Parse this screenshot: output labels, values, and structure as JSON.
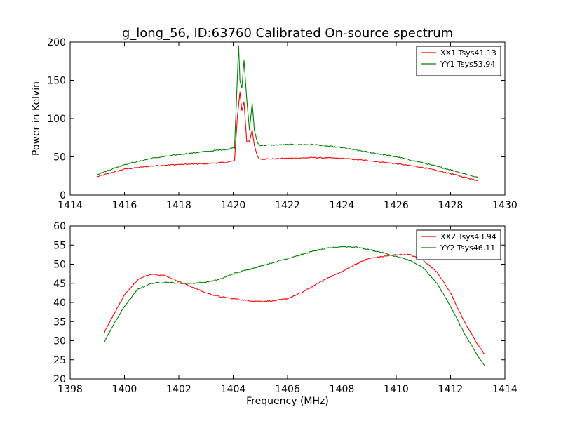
{
  "chart_data": [
    {
      "type": "line",
      "title": "g_long_56, ID:63760 Calibrated On-source spectrum",
      "xlabel": "",
      "ylabel": "Power in Kelvin",
      "xlim": [
        1414,
        1430
      ],
      "ylim": [
        0,
        200
      ],
      "xticks": [
        "1414",
        "1416",
        "1418",
        "1420",
        "1422",
        "1424",
        "1426",
        "1428",
        "1430"
      ],
      "yticks": [
        "0",
        "50",
        "100",
        "150",
        "200"
      ],
      "legend": "top-right",
      "grid": false,
      "series": [
        {
          "name": "XX1 Tsys41.13",
          "color": "#ff0000",
          "x": [
            1415.0,
            1416.0,
            1417.0,
            1418.0,
            1419.0,
            1419.8,
            1420.05,
            1420.15,
            1420.25,
            1420.32,
            1420.4,
            1420.5,
            1420.6,
            1420.7,
            1420.78,
            1420.9,
            1421.0,
            1422.0,
            1423.0,
            1424.0,
            1425.0,
            1426.0,
            1427.0,
            1428.0,
            1429.0
          ],
          "y": [
            24,
            34,
            38,
            40,
            41,
            43,
            45,
            100,
            135,
            110,
            122,
            70,
            70,
            85,
            65,
            50,
            47,
            48,
            49,
            48,
            45,
            41,
            36,
            28,
            19
          ]
        },
        {
          "name": "YY1 Tsys53.94",
          "color": "#008000",
          "x": [
            1415.0,
            1416.0,
            1417.0,
            1418.0,
            1419.0,
            1419.8,
            1420.05,
            1420.15,
            1420.2,
            1420.25,
            1420.32,
            1420.4,
            1420.5,
            1420.6,
            1420.7,
            1420.78,
            1420.9,
            1421.0,
            1422.0,
            1423.0,
            1424.0,
            1425.0,
            1426.0,
            1427.0,
            1428.0,
            1429.0
          ],
          "y": [
            27,
            40,
            48,
            53,
            57,
            60,
            62,
            150,
            196,
            150,
            140,
            176,
            125,
            85,
            120,
            85,
            68,
            65,
            66,
            66,
            62,
            56,
            50,
            42,
            33,
            23
          ]
        }
      ]
    },
    {
      "type": "line",
      "title": "",
      "xlabel": "Frequency (MHz)",
      "ylabel": "",
      "xlim": [
        1398,
        1414
      ],
      "ylim": [
        20,
        60
      ],
      "xticks": [
        "1398",
        "1400",
        "1402",
        "1404",
        "1406",
        "1408",
        "1410",
        "1412",
        "1414"
      ],
      "yticks": [
        "20",
        "25",
        "30",
        "35",
        "40",
        "45",
        "50",
        "55",
        "60"
      ],
      "legend": "top-right",
      "grid": false,
      "series": [
        {
          "name": "XX2 Tsys43.94",
          "color": "#ff0000",
          "x": [
            1399.25,
            1399.5,
            1400.0,
            1400.5,
            1401.0,
            1401.5,
            1402.0,
            1402.5,
            1403.0,
            1403.5,
            1404.0,
            1404.5,
            1405.0,
            1405.5,
            1406.0,
            1406.5,
            1407.0,
            1407.5,
            1408.0,
            1408.5,
            1409.0,
            1409.5,
            1410.0,
            1410.5,
            1411.0,
            1411.5,
            1412.0,
            1412.5,
            1413.0,
            1413.25
          ],
          "y": [
            32,
            35.5,
            42,
            46,
            47.5,
            47,
            45.5,
            44,
            42.5,
            41.5,
            41,
            40.5,
            40.3,
            40.4,
            41,
            42.5,
            44.5,
            46.5,
            48,
            50,
            51.5,
            52,
            52.5,
            52.5,
            51,
            48,
            42.5,
            35,
            29,
            26.5
          ]
        },
        {
          "name": "YY2 Tsys46.11",
          "color": "#008000",
          "x": [
            1399.25,
            1399.5,
            1400.0,
            1400.5,
            1401.0,
            1401.5,
            1402.0,
            1402.5,
            1403.0,
            1403.5,
            1404.0,
            1404.5,
            1405.0,
            1405.5,
            1406.0,
            1406.5,
            1407.0,
            1407.5,
            1408.0,
            1408.5,
            1409.0,
            1409.5,
            1410.0,
            1410.5,
            1411.0,
            1411.5,
            1412.0,
            1412.5,
            1413.0,
            1413.25
          ],
          "y": [
            29.5,
            33,
            39,
            43.5,
            45,
            45.3,
            45,
            45,
            45.3,
            46,
            47.5,
            48.5,
            49.5,
            50.5,
            51.5,
            52.5,
            53.5,
            54.2,
            54.6,
            54.5,
            53.8,
            53,
            52,
            51,
            49,
            45,
            39,
            32,
            26,
            23.5
          ]
        }
      ]
    }
  ]
}
